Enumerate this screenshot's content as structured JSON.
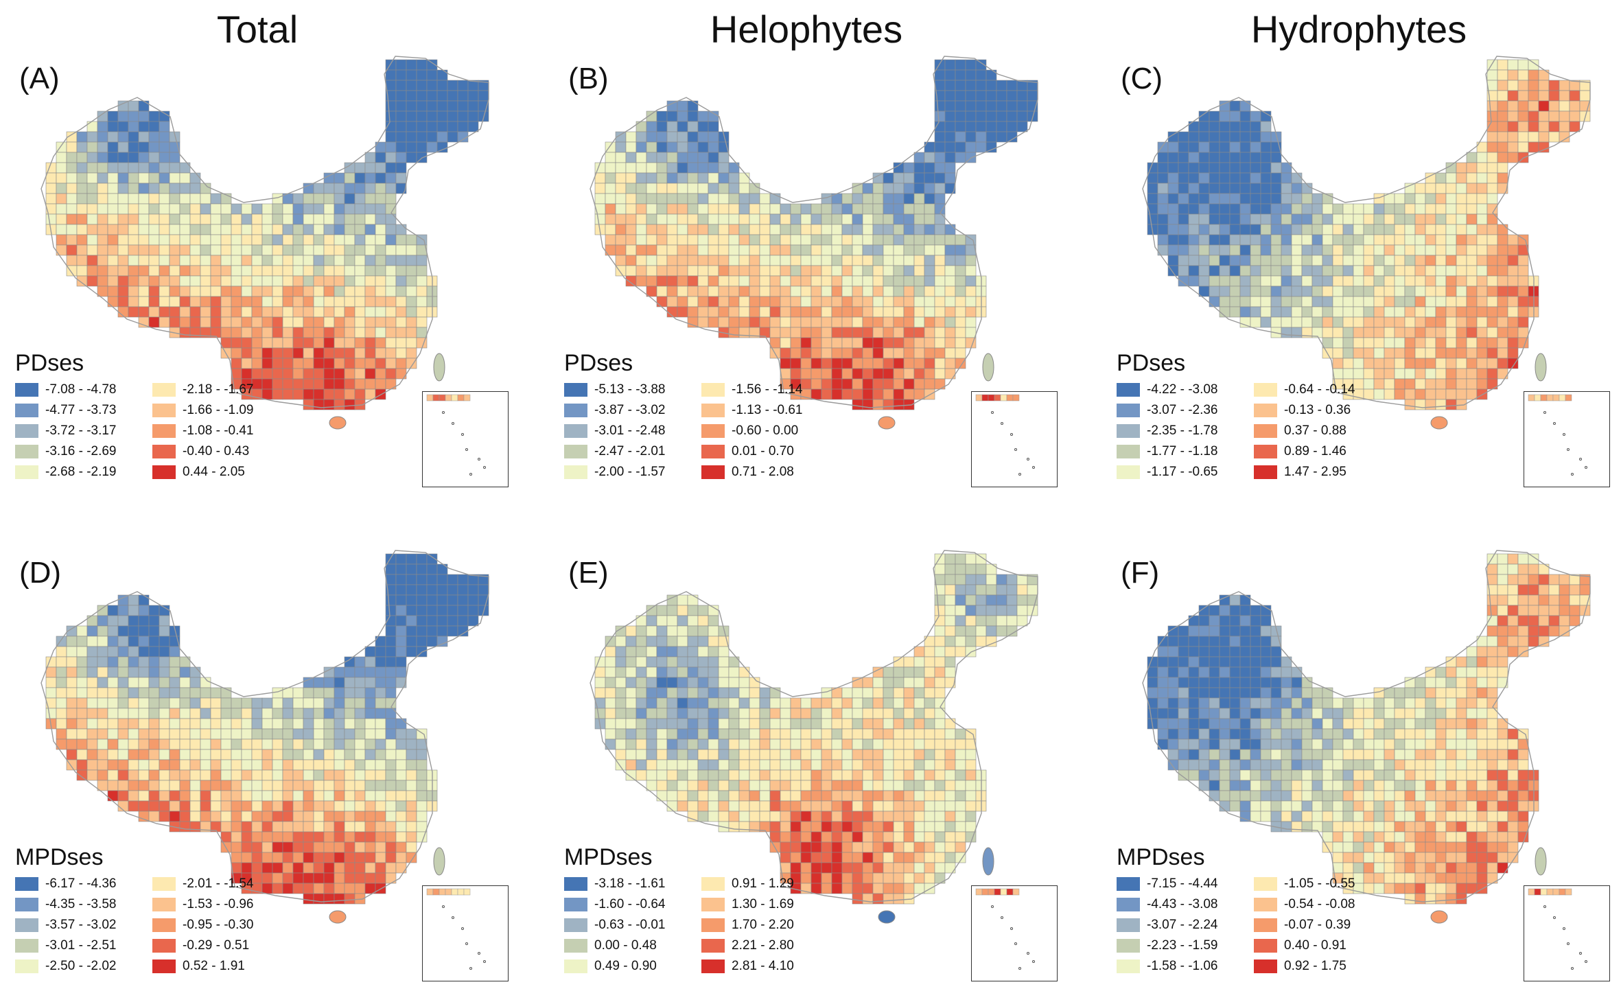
{
  "columns": [
    "Total",
    "Helophytes",
    "Hydrophytes"
  ],
  "colors": [
    "#4575b4",
    "#7396c4",
    "#9fb3c3",
    "#c5cfb2",
    "#eef3c6",
    "#fde9b0",
    "#fbc28e",
    "#f59b6b",
    "#e9674d",
    "#d7302b"
  ],
  "panels": [
    {
      "label": "(A)",
      "legend_title": "PDses",
      "seed": 11,
      "pattern": "total",
      "legend": [
        "-7.08 - -4.78",
        "-4.77 - -3.73",
        "-3.72 - -3.17",
        "-3.16 - -2.69",
        "-2.68 - -2.19",
        "-2.18 - -1.67",
        "-1.66 - -1.09",
        "-1.08 - -0.41",
        "-0.40 - 0.43",
        "0.44 - 2.05"
      ]
    },
    {
      "label": "(B)",
      "legend_title": "PDses",
      "seed": 23,
      "pattern": "total",
      "legend": [
        "-5.13 - -3.88",
        "-3.87 - -3.02",
        "-3.01 - -2.48",
        "-2.47 - -2.01",
        "-2.00 - -1.57",
        "-1.56 - -1.14",
        "-1.13 - -0.61",
        "-0.60 - 0.00",
        "0.01 - 0.70",
        "0.71 - 2.08"
      ]
    },
    {
      "label": "(C)",
      "legend_title": "PDses",
      "seed": 37,
      "pattern": "hydro",
      "legend": [
        "-4.22 - -3.08",
        "-3.07 - -2.36",
        "-2.35 - -1.78",
        "-1.77 - -1.18",
        "-1.17 - -0.65",
        "-0.64 - -0.14",
        "-0.13 - 0.36",
        "0.37 - 0.88",
        "0.89 - 1.46",
        "1.47 - 2.95"
      ]
    },
    {
      "label": "(D)",
      "legend_title": "MPDses",
      "seed": 41,
      "pattern": "total",
      "legend": [
        "-6.17 - -4.36",
        "-4.35 - -3.58",
        "-3.57 - -3.02",
        "-3.01 - -2.51",
        "-2.50 - -2.02",
        "-2.01 - -1.54",
        "-1.53 - -0.96",
        "-0.95 - -0.30",
        "-0.29 - 0.51",
        "0.52 - 1.91"
      ]
    },
    {
      "label": "(E)",
      "legend_title": "MPDses",
      "seed": 53,
      "pattern": "helo_mpd",
      "legend": [
        "-3.18 - -1.61",
        "-1.60 - -0.64",
        "-0.63 - -0.01",
        "0.00 - 0.48",
        "0.49 - 0.90",
        "0.91 - 1.29",
        "1.30 - 1.69",
        "1.70 - 2.20",
        "2.21 - 2.80",
        "2.81 - 4.10"
      ]
    },
    {
      "label": "(F)",
      "legend_title": "MPDses",
      "seed": 67,
      "pattern": "hydro",
      "legend": [
        "-7.15 - -4.44",
        "-4.43 - -3.08",
        "-3.07 - -2.24",
        "-2.23 - -1.59",
        "-1.58 - -1.06",
        "-1.05 - -0.55",
        "-0.54 - -0.08",
        "-0.07 - 0.39",
        "0.40 - 0.91",
        "0.92 - 1.75"
      ]
    }
  ]
}
